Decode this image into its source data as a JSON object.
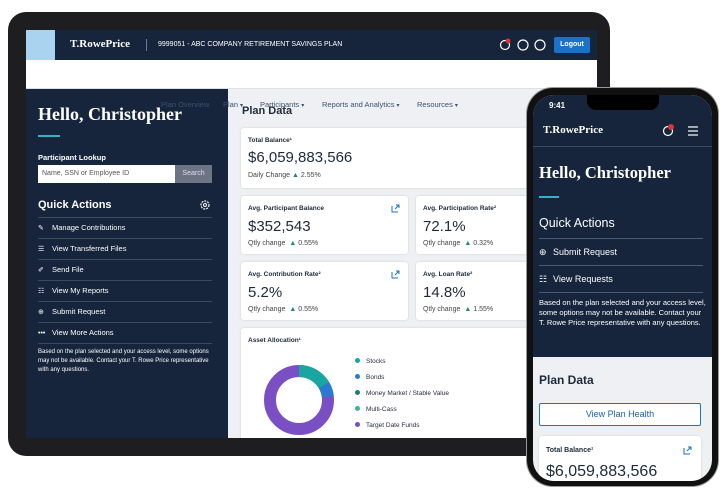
{
  "tablet": {
    "header": {
      "logo": "T.RowePrice",
      "plan": "9999051 - ABC COMPANY RETIREMENT SAVINGS PLAN",
      "logout": "Logout"
    },
    "nav": [
      "Plan Overview",
      "Plan",
      "Participants",
      "Reports and Analytics",
      "Resources"
    ],
    "sidebar": {
      "greeting": "Hello, Christopher",
      "lookup_label": "Participant Lookup",
      "lookup_placeholder": "Name, SSN or Employee ID",
      "search": "Search",
      "quick_actions": "Quick Actions",
      "actions": [
        "Manage Contributions",
        "View Transferred Files",
        "Send File",
        "View My Reports",
        "Submit Request",
        "View More Actions"
      ],
      "note": "Based on the plan selected and your access level, some options may not be available. Contact your T. Rowe Price representative with any questions."
    },
    "main": {
      "title": "Plan Data",
      "total": {
        "label": "Total Balance¹",
        "value": "$6,059,883,566",
        "change_label": "Daily Change",
        "change": "2.55%"
      },
      "metrics": [
        {
          "label": "Avg. Participant Balance",
          "value": "$352,543",
          "change_label": "Qtly change",
          "change": "0.55%"
        },
        {
          "label": "Avg. Participation Rate²",
          "value": "72.1%",
          "change_label": "Qtly change",
          "change": "0.32%"
        },
        {
          "label": "Avg. Contribution Rate²",
          "value": "5.2%",
          "change_label": "Qtly change",
          "change": "0.55%"
        },
        {
          "label": "Avg. Loan Rate²",
          "value": "14.8%",
          "change_label": "Qtly change",
          "change": "1.55%"
        }
      ],
      "allocation": {
        "title": "Asset Allocation¹",
        "legend": [
          "Stocks",
          "Bonds",
          "Money Market / Stable Value",
          "Multi-Cass",
          "Target Date Funds"
        ]
      }
    }
  },
  "phone": {
    "time": "9:41",
    "logo": "T.RowePrice",
    "greeting": "Hello, Christopher",
    "quick_actions": "Quick Actions",
    "actions": [
      "Submit Request",
      "View Requests"
    ],
    "note": "Based on the plan selected and your access level, some options may not be available. Contact your T. Rowe Price representative with any questions.",
    "plan_data": "Plan Data",
    "button": "View Plan Health",
    "total_label": "Total Balance¹",
    "total_value": "$6,059,883,566"
  }
}
